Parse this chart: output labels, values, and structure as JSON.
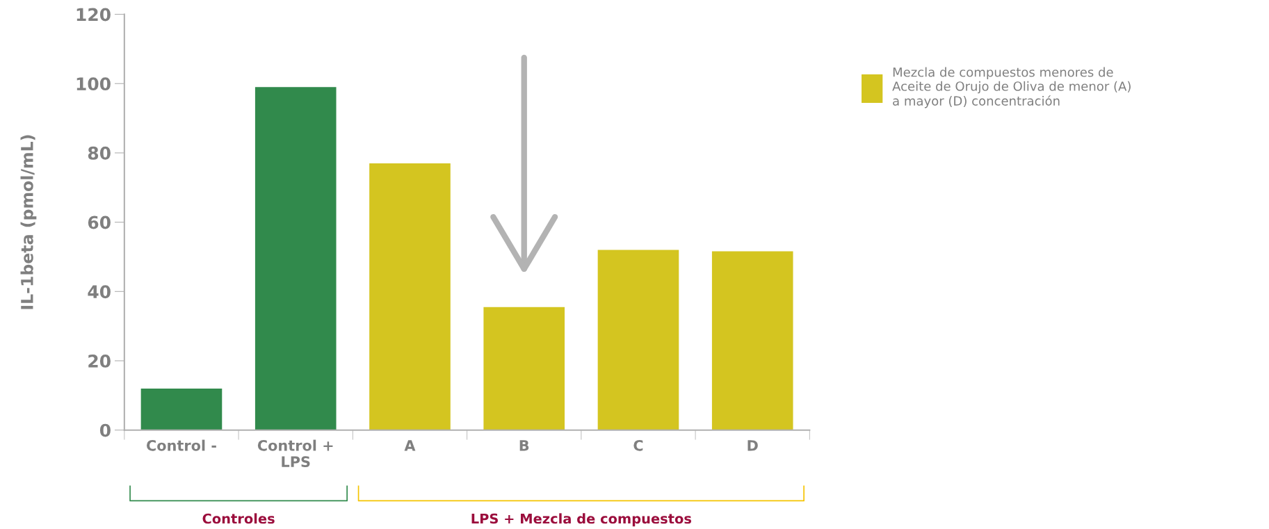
{
  "chart_data": {
    "type": "bar",
    "ylabel": "IL-1beta (pmol/mL)",
    "categories": [
      "Control -",
      "Control +\nLPS",
      "A",
      "B",
      "C",
      "D"
    ],
    "series": [
      {
        "color": "#318a4c",
        "values": [
          12,
          99,
          null,
          null,
          null,
          null
        ]
      },
      {
        "name": "Mezcla de compuestos menores de\nAceite de Orujo de Oliva de menor (A)\na mayor (D) concentración",
        "color": "#d4c520",
        "values": [
          null,
          null,
          77,
          35.5,
          52,
          51.6
        ]
      }
    ],
    "ylim": [
      0,
      120
    ],
    "yticks": [
      0,
      20,
      40,
      60,
      80,
      100,
      120
    ],
    "grid": false,
    "legend": "top right",
    "annotations": [
      "Controles",
      "LPS + Mezcla de compuestos"
    ]
  }
}
